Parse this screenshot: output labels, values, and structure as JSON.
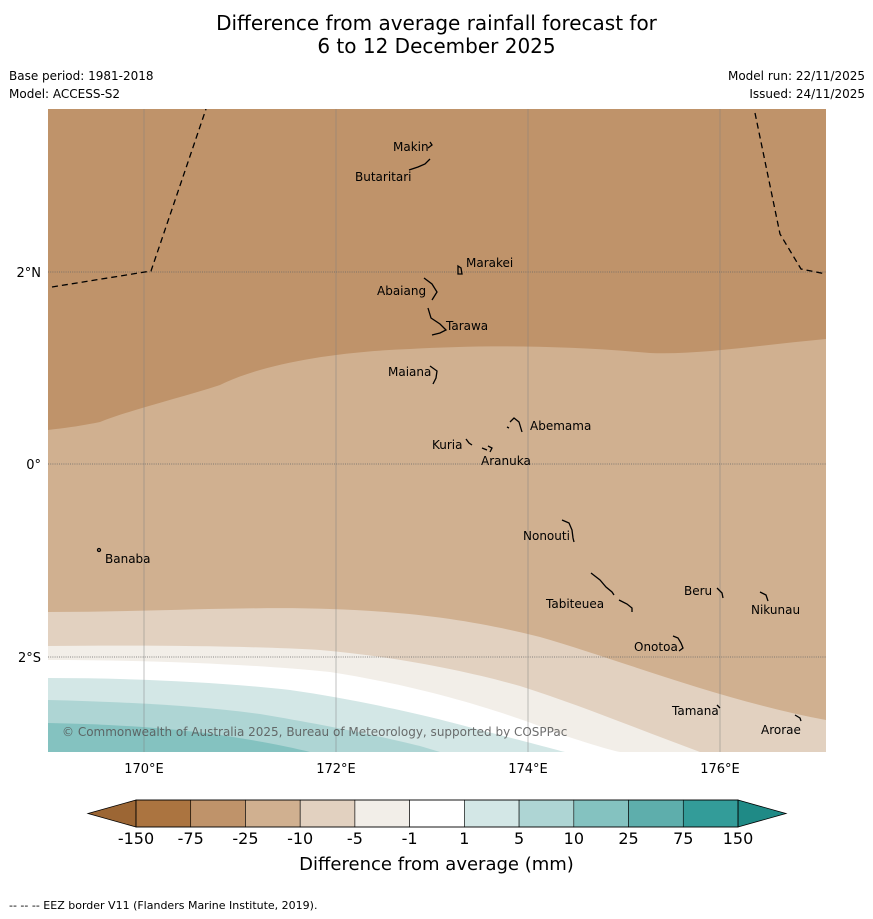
{
  "title": {
    "line1": "Difference from average rainfall forecast for",
    "line2": "6 to 12 December 2025"
  },
  "meta": {
    "base_period": "Base period: 1981-2018",
    "model": "Model: ACCESS-S2",
    "model_run": "Model run: 22/11/2025",
    "issued": "Issued: 24/11/2025"
  },
  "axes": {
    "lon_ticks": [
      "170°E",
      "172°E",
      "174°E",
      "176°E"
    ],
    "lat_ticks": [
      "2°N",
      "0°",
      "2°S"
    ]
  },
  "places": {
    "makin": "Makin",
    "butaritari": "Butaritari",
    "marakei": "Marakei",
    "abaiang": "Abaiang",
    "tarawa": "Tarawa",
    "maiana": "Maiana",
    "abemama": "Abemama",
    "kuria": "Kuria",
    "aranuka": "Aranuka",
    "nonouti": "Nonouti",
    "banaba": "Banaba",
    "beru": "Beru",
    "nikunau": "Nikunau",
    "tabiteuea": "Tabiteuea",
    "onotoa": "Onotoa",
    "tamana": "Tamana",
    "arorae": "Arorae"
  },
  "copyright": "© Commonwealth of Australia 2025, Bureau of Meteorology, supported by COSPPac",
  "colorbar": {
    "labels": [
      "-150",
      "-75",
      "-25",
      "-10",
      "-5",
      "-1",
      "1",
      "5",
      "10",
      "25",
      "75",
      "150"
    ],
    "title": "Difference from average (mm)",
    "colors": [
      "#ab7440",
      "#bf936a",
      "#d0b090",
      "#e2d1c0",
      "#f2eee8",
      "#ffffff",
      "#d3e7e6",
      "#aed5d4",
      "#84c2c0",
      "#5eaeac",
      "#339c99"
    ]
  },
  "footer": "--  --  -- EEZ border V11 (Flanders Marine Institute, 2019)."
}
